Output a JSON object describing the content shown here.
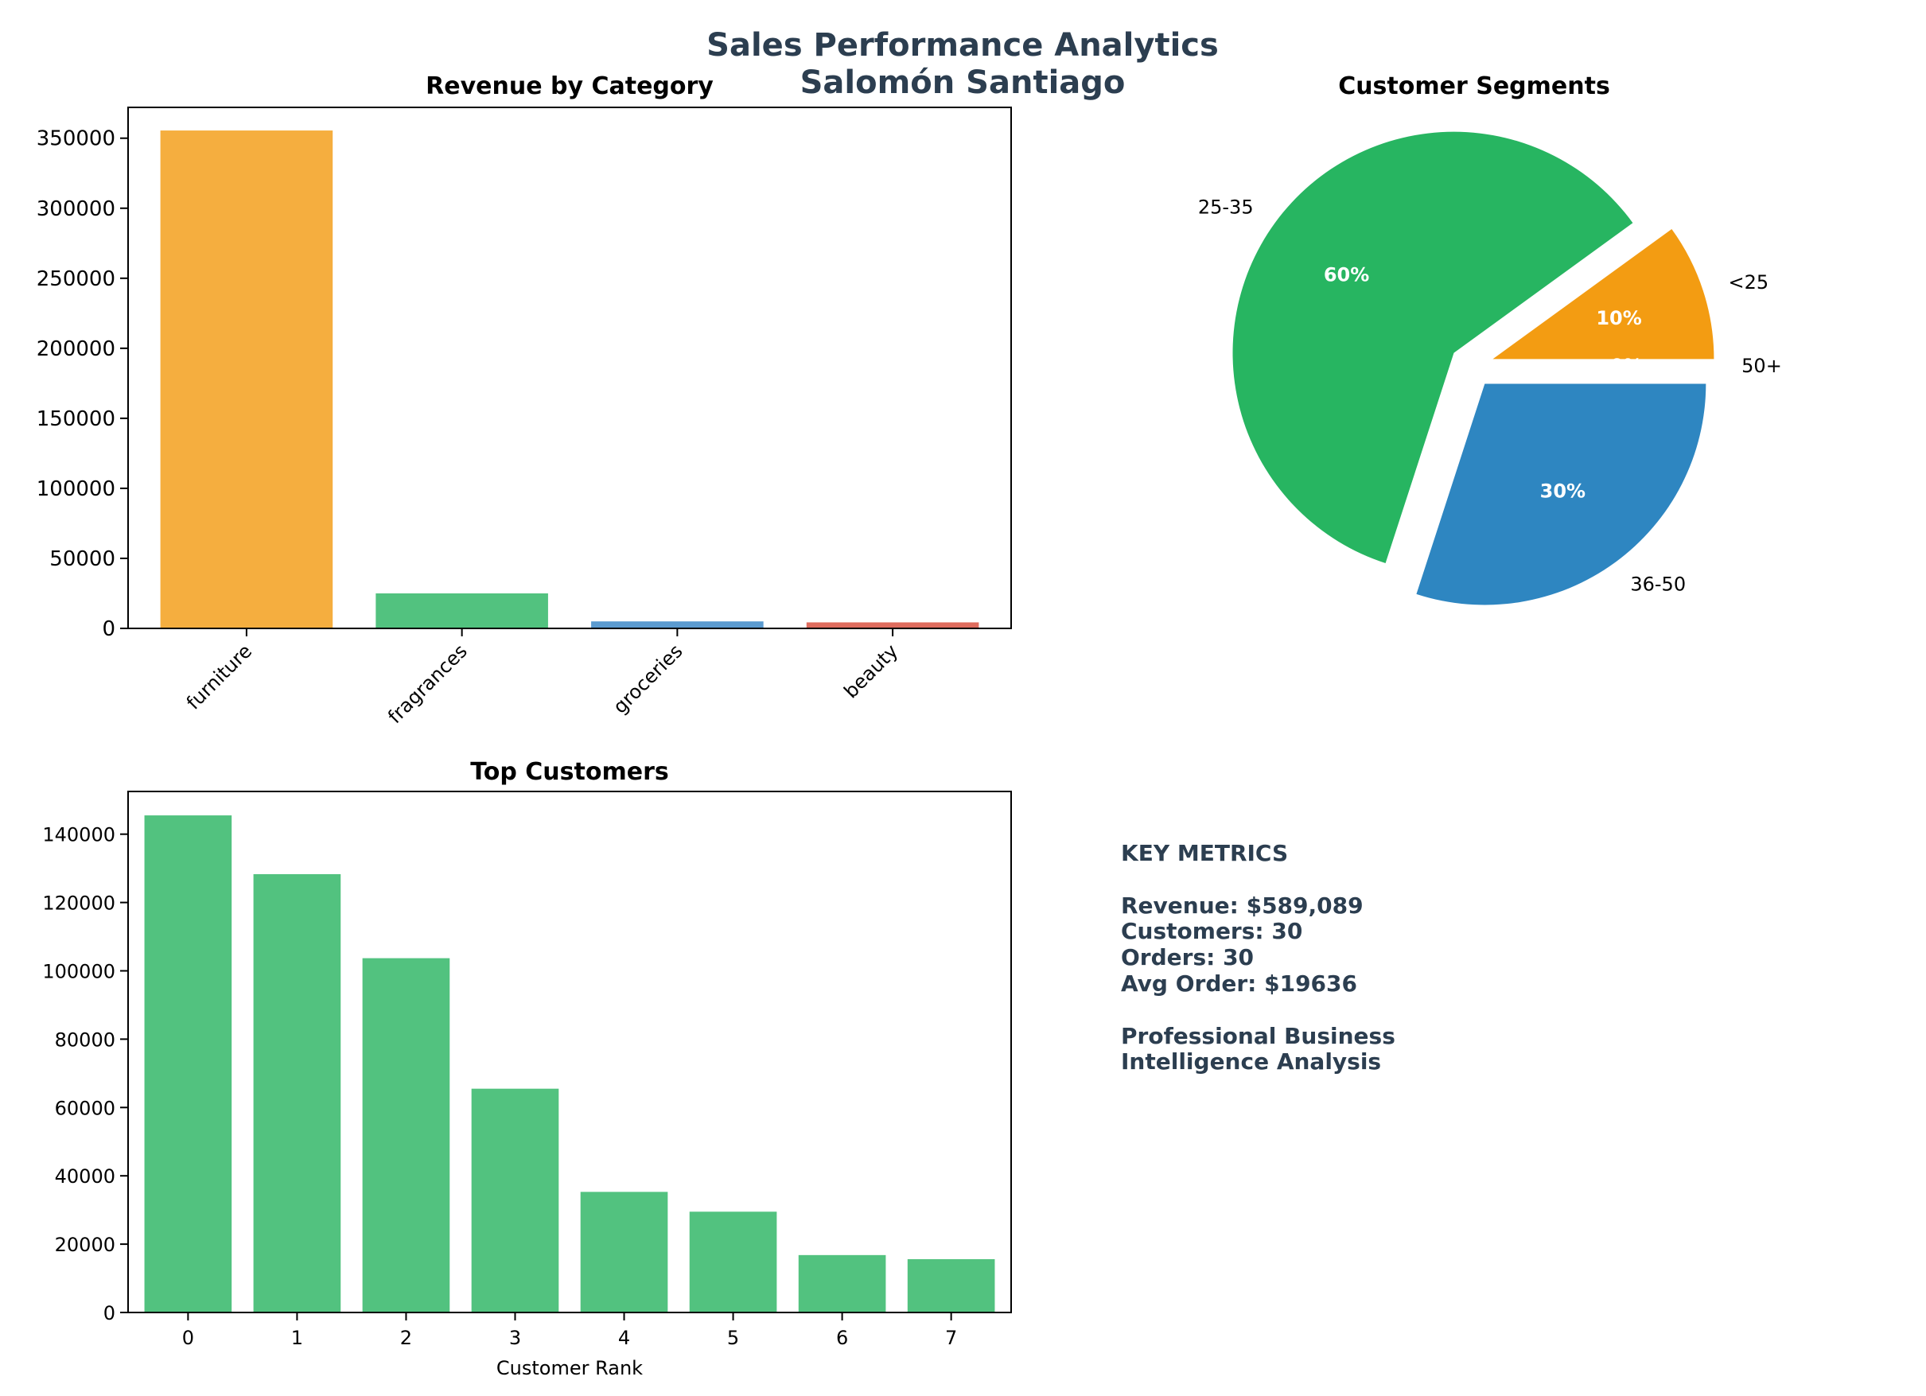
{
  "suptitle": [
    "Sales Performance Analytics",
    "Salomón Santiago"
  ],
  "chart_data": [
    {
      "type": "bar",
      "title": "Revenue by Category",
      "categories": [
        "furniture",
        "fragrances",
        "groceries",
        "beauty"
      ],
      "values": [
        355500,
        25000,
        5000,
        4300
      ],
      "colors": [
        "#f5ae3f",
        "#52c27f",
        "#5b9bd0",
        "#df6c5e"
      ],
      "ylim": [
        0,
        372000
      ],
      "yticks": [
        0,
        50000,
        100000,
        150000,
        200000,
        250000,
        300000,
        350000
      ],
      "xlabel": "",
      "ylabel": ""
    },
    {
      "type": "pie",
      "title": "Customer Segments",
      "labels": [
        "<25",
        "25-35",
        "36-50",
        "50+"
      ],
      "values": [
        10,
        60,
        30,
        0
      ],
      "pct_labels": [
        "10%",
        "60%",
        "30%",
        "0%"
      ],
      "colors": [
        "#f39c12",
        "#27b561",
        "#2e86c1",
        "#e74c3c"
      ]
    },
    {
      "type": "bar",
      "title": "Top Customers",
      "categories": [
        "0",
        "1",
        "2",
        "3",
        "4",
        "5",
        "6",
        "7"
      ],
      "values": [
        145500,
        128300,
        103700,
        65500,
        35300,
        29500,
        16800,
        15600
      ],
      "color": "#52c27f",
      "ylim": [
        0,
        152500
      ],
      "yticks": [
        0,
        20000,
        40000,
        60000,
        80000,
        100000,
        120000,
        140000
      ],
      "xlabel": "Customer Rank",
      "ylabel": ""
    }
  ],
  "metrics": {
    "heading": "KEY METRICS",
    "lines": [
      "Revenue: $589,089",
      "Customers: 30",
      "Orders: 30",
      "Avg Order: $19636"
    ],
    "footer": [
      "Professional Business",
      "Intelligence Analysis"
    ]
  }
}
